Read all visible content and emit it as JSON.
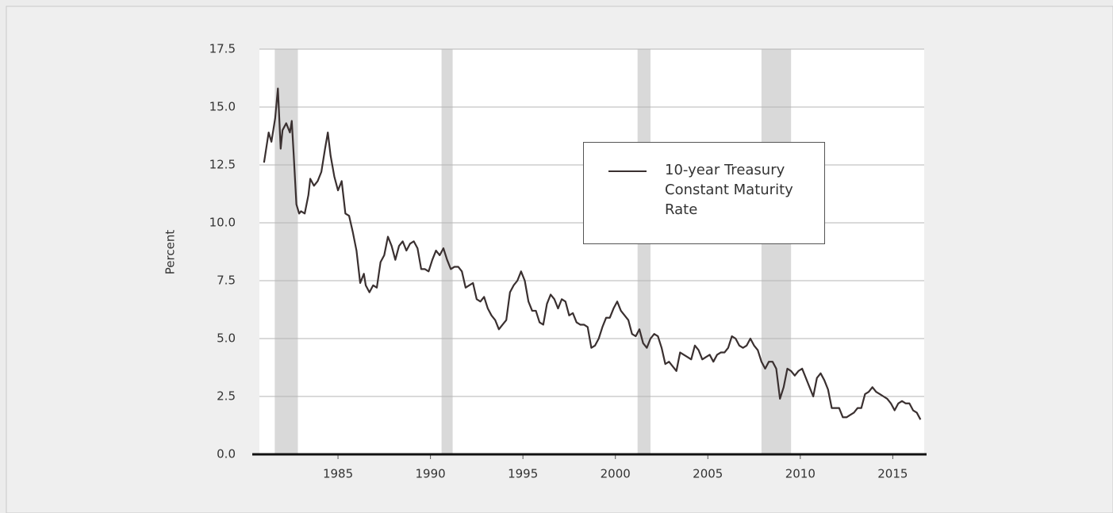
{
  "chart_data": {
    "type": "line",
    "ylabel": "Percent",
    "xlim": [
      1980.75,
      2016.7
    ],
    "xticks": [
      1985,
      1990,
      1995,
      2000,
      2005,
      2010,
      2015
    ],
    "ylim": [
      0,
      17.5
    ],
    "yticks": [
      {
        "value": 0,
        "label": "0.0"
      },
      2.5,
      {
        "value": 5,
        "label": "5.0"
      },
      7.5,
      {
        "value": 10,
        "label": "10.0"
      },
      12.5,
      {
        "value": 15,
        "label": "15.0"
      },
      17.5
    ],
    "grid": true,
    "recessions": [
      [
        1981.58,
        1982.83
      ],
      [
        1990.6,
        1991.2
      ],
      [
        2001.2,
        2001.9
      ],
      [
        2007.9,
        2009.5
      ]
    ],
    "x": [
      1981.0,
      1981.25,
      1981.4,
      1981.6,
      1981.75,
      1981.9,
      1982.0,
      1982.2,
      1982.4,
      1982.5,
      1982.6,
      1982.75,
      1982.9,
      1983.0,
      1983.2,
      1983.4,
      1983.5,
      1983.7,
      1983.9,
      1984.1,
      1984.3,
      1984.45,
      1984.6,
      1984.8,
      1985.0,
      1985.2,
      1985.4,
      1985.6,
      1985.8,
      1986.0,
      1986.2,
      1986.4,
      1986.5,
      1986.7,
      1986.9,
      1987.1,
      1987.3,
      1987.5,
      1987.7,
      1987.9,
      1988.1,
      1988.3,
      1988.5,
      1988.7,
      1988.9,
      1989.1,
      1989.3,
      1989.5,
      1989.7,
      1989.9,
      1990.1,
      1990.3,
      1990.5,
      1990.7,
      1990.9,
      1991.1,
      1991.3,
      1991.5,
      1991.7,
      1991.9,
      1992.1,
      1992.3,
      1992.5,
      1992.7,
      1992.9,
      1993.1,
      1993.3,
      1993.5,
      1993.7,
      1993.9,
      1994.1,
      1994.3,
      1994.5,
      1994.7,
      1994.9,
      1995.1,
      1995.3,
      1995.5,
      1995.7,
      1995.9,
      1996.1,
      1996.3,
      1996.5,
      1996.7,
      1996.9,
      1997.1,
      1997.3,
      1997.5,
      1997.7,
      1997.9,
      1998.1,
      1998.3,
      1998.5,
      1998.7,
      1998.9,
      1999.1,
      1999.3,
      1999.5,
      1999.7,
      1999.9,
      2000.1,
      2000.3,
      2000.5,
      2000.7,
      2000.9,
      2001.1,
      2001.3,
      2001.5,
      2001.7,
      2001.9,
      2002.1,
      2002.3,
      2002.5,
      2002.7,
      2002.9,
      2003.1,
      2003.3,
      2003.5,
      2003.7,
      2003.9,
      2004.1,
      2004.3,
      2004.5,
      2004.7,
      2004.9,
      2005.1,
      2005.3,
      2005.5,
      2005.7,
      2005.9,
      2006.1,
      2006.3,
      2006.5,
      2006.7,
      2006.9,
      2007.1,
      2007.3,
      2007.5,
      2007.7,
      2007.9,
      2008.1,
      2008.3,
      2008.5,
      2008.7,
      2008.9,
      2009.1,
      2009.3,
      2009.5,
      2009.7,
      2009.9,
      2010.1,
      2010.3,
      2010.5,
      2010.7,
      2010.9,
      2011.1,
      2011.3,
      2011.5,
      2011.7,
      2011.9,
      2012.1,
      2012.3,
      2012.5,
      2012.7,
      2012.9,
      2013.1,
      2013.3,
      2013.5,
      2013.7,
      2013.9,
      2014.1,
      2014.3,
      2014.5,
      2014.7,
      2014.9,
      2015.1,
      2015.3,
      2015.5,
      2015.7,
      2015.9,
      2016.1,
      2016.3,
      2016.5
    ],
    "series": [
      {
        "name": "10-year Treasury Constant Maturity Rate",
        "color": "#3a3030",
        "values": [
          12.6,
          13.9,
          13.5,
          14.5,
          15.8,
          13.2,
          14.0,
          14.3,
          13.9,
          14.4,
          13.0,
          10.8,
          10.4,
          10.5,
          10.4,
          11.2,
          11.9,
          11.6,
          11.8,
          12.2,
          13.2,
          13.9,
          12.9,
          12.0,
          11.4,
          11.8,
          10.4,
          10.3,
          9.6,
          8.8,
          7.4,
          7.8,
          7.3,
          7.0,
          7.3,
          7.2,
          8.3,
          8.6,
          9.4,
          9.0,
          8.4,
          9.0,
          9.2,
          8.8,
          9.1,
          9.2,
          8.9,
          8.0,
          8.0,
          7.9,
          8.4,
          8.8,
          8.6,
          8.9,
          8.4,
          8.0,
          8.1,
          8.1,
          7.9,
          7.2,
          7.3,
          7.4,
          6.7,
          6.6,
          6.8,
          6.3,
          6.0,
          5.8,
          5.4,
          5.6,
          5.8,
          7.0,
          7.3,
          7.5,
          7.9,
          7.5,
          6.6,
          6.2,
          6.2,
          5.7,
          5.6,
          6.5,
          6.9,
          6.7,
          6.3,
          6.7,
          6.6,
          6.0,
          6.1,
          5.7,
          5.6,
          5.6,
          5.5,
          4.6,
          4.7,
          5.0,
          5.5,
          5.9,
          5.9,
          6.3,
          6.6,
          6.2,
          6.0,
          5.8,
          5.2,
          5.1,
          5.4,
          4.8,
          4.6,
          5.0,
          5.2,
          5.1,
          4.6,
          3.9,
          4.0,
          3.8,
          3.6,
          4.4,
          4.3,
          4.2,
          4.1,
          4.7,
          4.5,
          4.1,
          4.2,
          4.3,
          4.0,
          4.3,
          4.4,
          4.4,
          4.6,
          5.1,
          5.0,
          4.7,
          4.6,
          4.7,
          5.0,
          4.7,
          4.5,
          4.0,
          3.7,
          4.0,
          4.0,
          3.7,
          2.4,
          2.9,
          3.7,
          3.6,
          3.4,
          3.6,
          3.7,
          3.3,
          2.9,
          2.5,
          3.3,
          3.5,
          3.2,
          2.8,
          2.0,
          2.0,
          2.0,
          1.6,
          1.6,
          1.7,
          1.8,
          2.0,
          2.0,
          2.6,
          2.7,
          2.9,
          2.7,
          2.6,
          2.5,
          2.4,
          2.2,
          1.9,
          2.2,
          2.3,
          2.2,
          2.2,
          1.9,
          1.8,
          1.5
        ]
      }
    ]
  }
}
